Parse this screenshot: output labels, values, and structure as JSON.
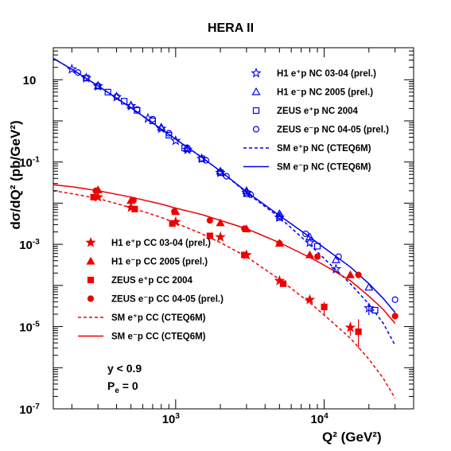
{
  "chart_data": {
    "type": "scatter",
    "title": "HERA II",
    "xlabel": "Q² (GeV²)",
    "ylabel": "dσ/dQ² (pb/GeV²)",
    "xscale": "log",
    "yscale": "log",
    "xlim": [
      150,
      40000
    ],
    "ylim": [
      1e-07,
      60
    ],
    "x_tick_labels": [
      {
        "label": "10",
        "sup": "3",
        "value": 1000
      },
      {
        "label": "10",
        "sup": "4",
        "value": 10000
      }
    ],
    "y_tick_labels": [
      {
        "label": "10",
        "sup": "",
        "value": 10
      },
      {
        "label": "10",
        "sup": "-1",
        "value": 0.1
      },
      {
        "label": "10",
        "sup": "-3",
        "value": 0.001
      },
      {
        "label": "10",
        "sup": "-5",
        "value": 1e-05
      },
      {
        "label": "10",
        "sup": "-7",
        "value": 1e-07
      }
    ],
    "colors": {
      "nc": "#0000ee",
      "cc": "#ee0000"
    },
    "series": [
      {
        "name": "H1 e⁺p NC 03-04 (prel.)",
        "marker": "star-open",
        "color": "#0000ee",
        "x": [
          200,
          250,
          300,
          400,
          500,
          650,
          800,
          1000,
          1200,
          1500,
          2000,
          3000,
          5000,
          8000,
          12000,
          20000
        ],
        "y": [
          18,
          11,
          7,
          3.8,
          2.3,
          1.15,
          0.65,
          0.33,
          0.2,
          0.12,
          0.055,
          0.018,
          0.0045,
          0.0011,
          0.00025,
          2.8e-05
        ]
      },
      {
        "name": "H1 e⁻p NC 2005 (prel.)",
        "marker": "triangle-open",
        "color": "#0000ee",
        "x": [
          300,
          500,
          800,
          1200,
          2000,
          3000,
          5000,
          8000,
          12000,
          20000
        ],
        "y": [
          7,
          2.4,
          0.7,
          0.21,
          0.06,
          0.02,
          0.0055,
          0.0015,
          0.00042,
          9e-05
        ]
      },
      {
        "name": "ZEUS e⁺p NC 2004",
        "marker": "square-open",
        "color": "#0000ee",
        "x": [
          250,
          350,
          450,
          550,
          700,
          900,
          1150,
          1500,
          2000,
          3000,
          5000,
          9000,
          22000
        ],
        "y": [
          11,
          5,
          3,
          1.8,
          1,
          0.45,
          0.22,
          0.12,
          0.055,
          0.017,
          0.0045,
          0.0009,
          2.5e-05
        ]
      },
      {
        "name": "ZEUS e⁻p NC 04-05 (prel.)",
        "marker": "circle-open",
        "color": "#0000ee",
        "x": [
          220,
          300,
          400,
          550,
          700,
          900,
          1200,
          1600,
          2200,
          3200,
          5000,
          7500,
          12500,
          30000
        ],
        "y": [
          15,
          7.2,
          3.9,
          1.9,
          1.1,
          0.5,
          0.22,
          0.11,
          0.045,
          0.016,
          0.005,
          0.0018,
          0.0005,
          4.5e-05
        ]
      },
      {
        "name": "H1 e⁺p CC 03-04 (prel.)",
        "marker": "star-filled",
        "color": "#ee0000",
        "x": [
          300,
          500,
          1000,
          2000,
          3000,
          5000,
          8000,
          15000
        ],
        "y": [
          0.014,
          0.0078,
          0.0035,
          0.0015,
          0.00055,
          0.00013,
          4.5e-05,
          9.5e-06
        ]
      },
      {
        "name": "H1 e⁻p CC 2005 (prel.)",
        "marker": "triangle-filled",
        "color": "#ee0000",
        "x": [
          300,
          500,
          1000,
          2000,
          3000,
          5000,
          8000,
          15000
        ],
        "y": [
          0.021,
          0.0115,
          0.0062,
          0.0033,
          0.00235,
          0.00105,
          0.00055,
          0.00018
        ]
      },
      {
        "name": "ZEUS e⁺p CC 2004",
        "marker": "square-filled",
        "color": "#ee0000",
        "x": [
          280,
          530,
          950,
          1700,
          2900,
          5300,
          10000,
          17000
        ],
        "y": [
          0.014,
          0.0072,
          0.0032,
          0.0016,
          0.00055,
          0.00011,
          3e-05,
          7.5e-06
        ]
      },
      {
        "name": "ZEUS e⁻p CC 04-05 (prel.)",
        "marker": "circle-filled",
        "color": "#ee0000",
        "x": [
          290,
          520,
          980,
          1700,
          2900,
          5000,
          9000,
          17000,
          30000
        ],
        "y": [
          0.02,
          0.0118,
          0.0063,
          0.0038,
          0.0024,
          0.00105,
          0.0005,
          0.00018,
          1.8e-05
        ]
      }
    ],
    "error_bars": [
      {
        "series": 6,
        "x": 10000,
        "low": 1.8e-05,
        "high": 4e-05
      },
      {
        "series": 6,
        "x": 17000,
        "low": 3e-06,
        "high": 1.5e-05
      },
      {
        "series": 4,
        "x": 15000,
        "low": 6e-06,
        "high": 1.3e-05
      },
      {
        "series": 0,
        "x": 20000,
        "low": 1.9e-05,
        "high": 3.7e-05
      }
    ],
    "curves": [
      {
        "name": "SM e⁺p NC (CTEQ6M)",
        "style": "dashed",
        "color": "#0000ee",
        "x": [
          150,
          200,
          300,
          500,
          800,
          1000,
          1500,
          2000,
          3000,
          5000,
          8000,
          10000,
          15000,
          20000,
          25000,
          30000
        ],
        "y": [
          33,
          18,
          7.1,
          2.1,
          0.63,
          0.36,
          0.13,
          0.06,
          0.018,
          0.0045,
          0.00098,
          0.00045,
          0.00011,
          3.5e-05,
          1.2e-05,
          3.5e-06
        ]
      },
      {
        "name": "SM e⁻p NC (CTEQ6M)",
        "style": "solid",
        "color": "#0000ee",
        "x": [
          150,
          200,
          300,
          500,
          800,
          1000,
          1500,
          2000,
          3000,
          5000,
          8000,
          10000,
          15000,
          20000,
          25000,
          30000
        ],
        "y": [
          33,
          18,
          7.1,
          2.1,
          0.63,
          0.36,
          0.13,
          0.06,
          0.019,
          0.005,
          0.0015,
          0.00082,
          0.00028,
          0.00011,
          4.8e-05,
          2.2e-05
        ]
      },
      {
        "name": "SM e⁺p CC (CTEQ6M)",
        "style": "dashed",
        "color": "#ee0000",
        "x": [
          150,
          200,
          300,
          500,
          800,
          1000,
          1500,
          2000,
          3000,
          5000,
          8000,
          10000,
          15000,
          20000,
          25000,
          30000
        ],
        "y": [
          0.02,
          0.017,
          0.013,
          0.0078,
          0.0045,
          0.0033,
          0.0018,
          0.0011,
          0.0005,
          0.00014,
          3.8e-05,
          1.9e-05,
          5.2e-06,
          1.6e-06,
          5.5e-07,
          1.8e-07
        ]
      },
      {
        "name": "SM e⁻p CC (CTEQ6M)",
        "style": "solid",
        "color": "#ee0000",
        "x": [
          150,
          200,
          300,
          500,
          800,
          1000,
          1500,
          2000,
          3000,
          5000,
          8000,
          10000,
          15000,
          20000,
          25000,
          30000
        ],
        "y": [
          0.028,
          0.025,
          0.02,
          0.014,
          0.0095,
          0.0076,
          0.0053,
          0.0038,
          0.0024,
          0.0011,
          0.00048,
          0.00031,
          0.00013,
          5.5e-05,
          2.6e-05,
          1.2e-05
        ]
      }
    ],
    "legends": [
      {
        "name": "legend-nc",
        "placement": "top-right",
        "entries": [
          0,
          1,
          2,
          3
        ],
        "curves": [
          0,
          1
        ]
      },
      {
        "name": "legend-cc",
        "placement": "bottom-left",
        "entries": [
          4,
          5,
          6,
          7
        ],
        "curves": [
          2,
          3
        ]
      }
    ],
    "annotations": [
      {
        "name": "y-cut",
        "text": "y < 0.9"
      },
      {
        "name": "polarisation",
        "text": "P",
        "sub": "e",
        "suffix": " = 0"
      }
    ],
    "grid": false
  }
}
